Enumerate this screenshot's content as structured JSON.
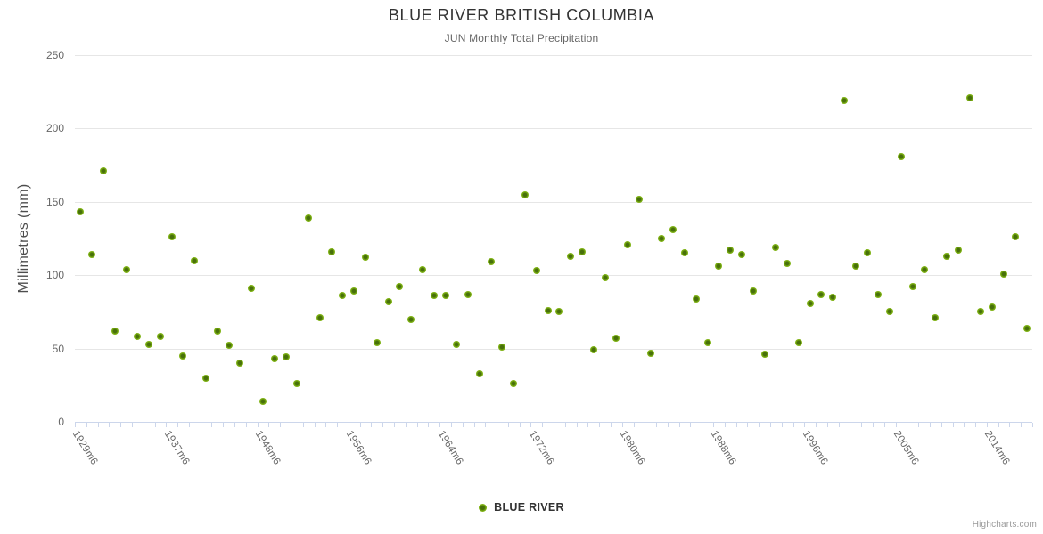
{
  "header": {
    "title": "BLUE RIVER BRITISH COLUMBIA",
    "subtitle": "JUN Monthly Total Precipitation"
  },
  "y_axis": {
    "title": "Millimetres (mm)",
    "tick_labels": [
      "0",
      "50",
      "100",
      "150",
      "200",
      "250"
    ]
  },
  "x_axis": {
    "tick_labels": [
      "1929m6",
      "1937m6",
      "1948m6",
      "1956m6",
      "1964m6",
      "1972m6",
      "1980m6",
      "1988m6",
      "1996m6",
      "2005m6",
      "2014m6"
    ],
    "label_interval": 8
  },
  "legend": {
    "label": "BLUE RIVER"
  },
  "credit": {
    "label": "Highcharts.com"
  },
  "colors": {
    "marker_outer": "#8cc21e",
    "marker_mid": "#7db013",
    "marker_inner": "#47700a",
    "grid": "#e6e6e6",
    "axis": "#ccd6eb",
    "title_text": "#333333",
    "subtitle_text": "#666666",
    "axis_label_text": "#666666",
    "credit_text": "#999999"
  },
  "chart_data": {
    "type": "scatter",
    "title": "BLUE RIVER BRITISH COLUMBIA",
    "subtitle": "JUN Monthly Total Precipitation",
    "ylabel": "Millimetres (mm)",
    "ylim": [
      0,
      250
    ],
    "yticks": [
      0,
      50,
      100,
      150,
      200,
      250
    ],
    "grid": true,
    "legend_position": "bottom",
    "x_tick_labels": [
      "1929m6",
      "1937m6",
      "1948m6",
      "1956m6",
      "1964m6",
      "1972m6",
      "1980m6",
      "1988m6",
      "1996m6",
      "2005m6",
      "2014m6"
    ],
    "x_label_interval": 8,
    "series": [
      {
        "name": "BLUE RIVER",
        "values": [
          143,
          114,
          171,
          62,
          104,
          58,
          53,
          58,
          126,
          45,
          110,
          30,
          62,
          52,
          40,
          91,
          14,
          43,
          44,
          26,
          139,
          71,
          116,
          86,
          89,
          112,
          54,
          82,
          92,
          70,
          104,
          86,
          86,
          53,
          87,
          33,
          109,
          51,
          26,
          155,
          103,
          76,
          75,
          113,
          116,
          49,
          98,
          57,
          121,
          152,
          47,
          125,
          131,
          115,
          84,
          54,
          106,
          117,
          114,
          89,
          46,
          119,
          108,
          54,
          81,
          87,
          85,
          219,
          106,
          115,
          87,
          75,
          181,
          92,
          104,
          71,
          113,
          117,
          221,
          75,
          78,
          101,
          126,
          64
        ]
      }
    ]
  }
}
